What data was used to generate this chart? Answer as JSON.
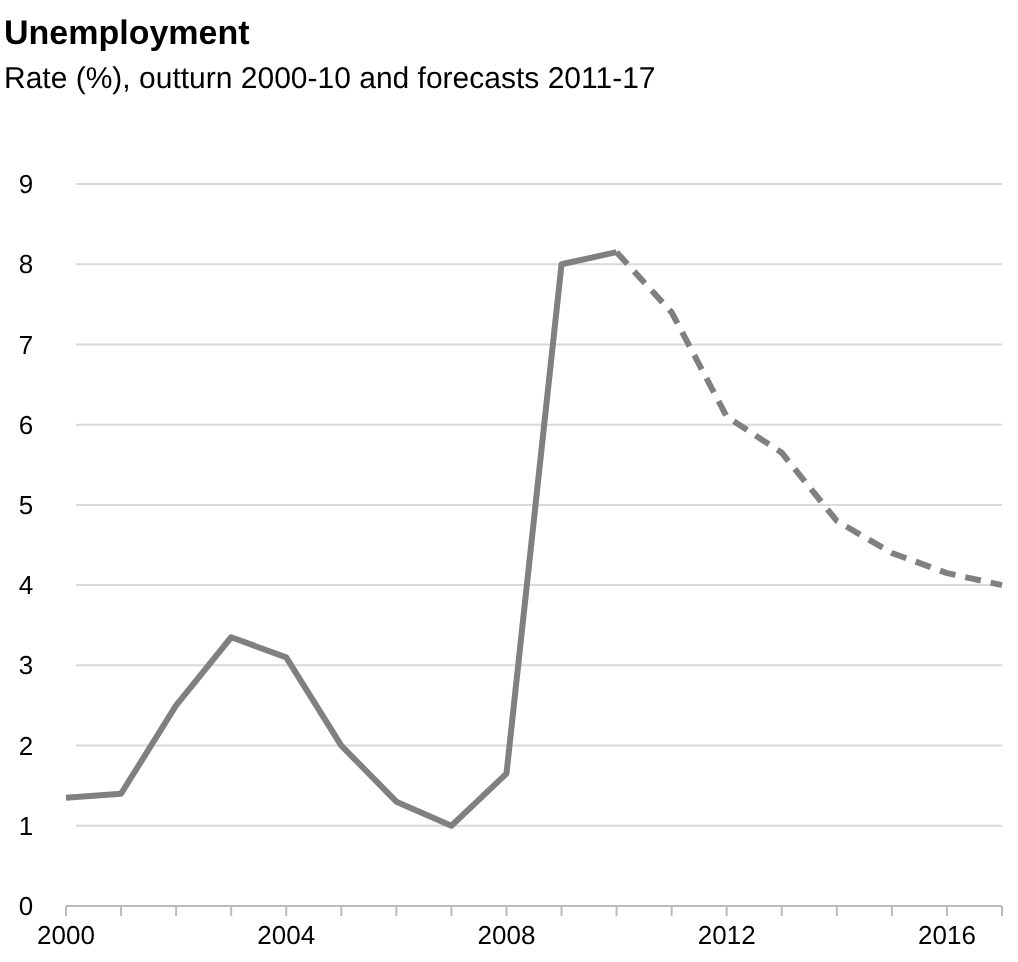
{
  "chart_data": {
    "type": "line",
    "title": "Unemployment",
    "subtitle": "Rate (%), outturn 2000-10 and forecasts 2011-17",
    "xlim": [
      2000,
      2017
    ],
    "xticks": [
      2000,
      {
        "value": 2001,
        "label": null
      },
      {
        "value": 2002,
        "label": null
      },
      {
        "value": 2003,
        "label": null
      },
      2004,
      {
        "value": 2005,
        "label": null
      },
      {
        "value": 2006,
        "label": null
      },
      {
        "value": 2007,
        "label": null
      },
      2008,
      {
        "value": 2009,
        "label": null
      },
      {
        "value": 2010,
        "label": null
      },
      {
        "value": 2011,
        "label": null
      },
      2012,
      {
        "value": 2013,
        "label": null
      },
      {
        "value": 2014,
        "label": null
      },
      {
        "value": 2015,
        "label": null
      },
      2016,
      {
        "value": 2017,
        "label": null
      }
    ],
    "ylim": [
      0,
      9
    ],
    "yticks": [
      0,
      1,
      2,
      3,
      4,
      5,
      6,
      7,
      8,
      9
    ],
    "grid": "y",
    "series": [
      {
        "color": "#808080",
        "line_style": "solid",
        "x": [
          2000,
          2001,
          2002,
          2003,
          2004,
          2005,
          2006,
          2007,
          2008,
          2009,
          2010
        ],
        "values": [
          1.35,
          1.4,
          2.5,
          3.35,
          3.1,
          2.0,
          1.3,
          1.0,
          1.65,
          8.0,
          8.15
        ]
      },
      {
        "color": "#808080",
        "line_style": "dashed",
        "x": [
          2010,
          2011,
          2012,
          2013,
          2014,
          2015,
          2016,
          2017
        ],
        "values": [
          8.15,
          7.4,
          6.1,
          5.65,
          4.8,
          4.4,
          4.15,
          4.0
        ]
      }
    ]
  }
}
